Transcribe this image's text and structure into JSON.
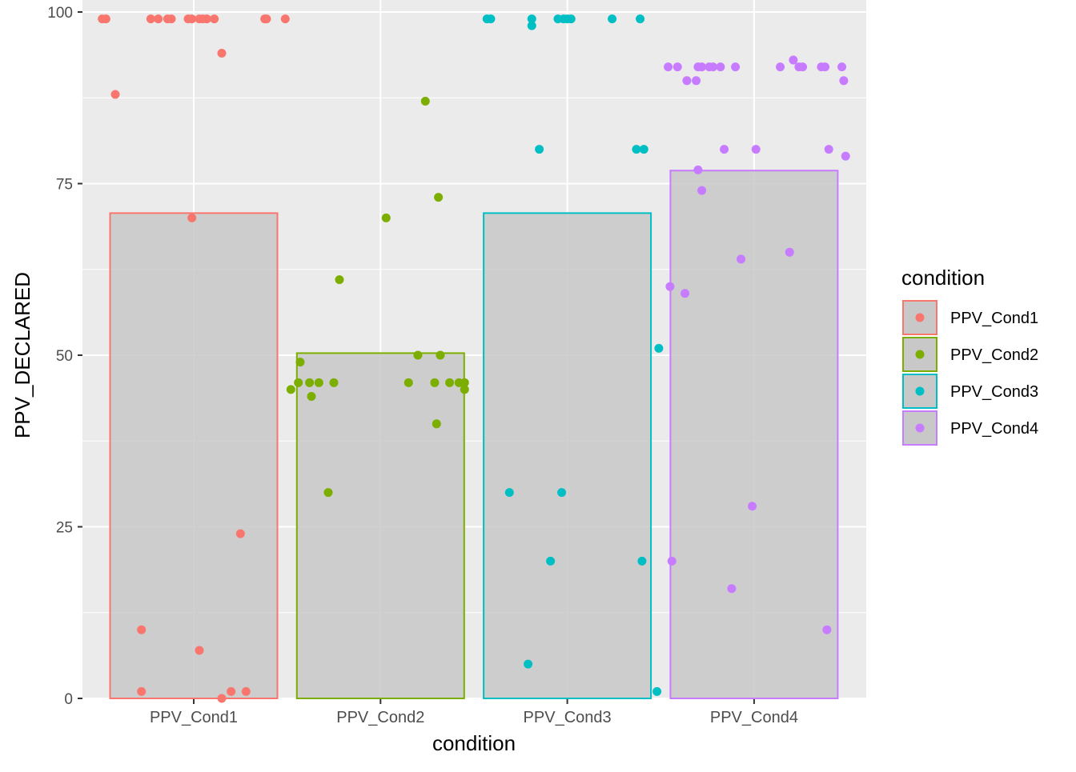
{
  "chart_data": {
    "type": "bar",
    "title": "",
    "xlabel": "condition",
    "ylabel": "PPV_DECLARED",
    "ylim": [
      0,
      100
    ],
    "yticks": [
      0,
      25,
      50,
      75,
      100
    ],
    "grid": true,
    "legend": {
      "title": "condition",
      "placement": "right"
    },
    "categories": [
      "PPV_Cond1",
      "PPV_Cond2",
      "PPV_Cond3",
      "PPV_Cond4"
    ],
    "colors": [
      "#F8766D",
      "#7CAE00",
      "#00BFC4",
      "#C77CFF"
    ],
    "bar_fill": "#c8c8c8",
    "values": [
      70.7,
      50.3,
      70.7,
      76.9
    ],
    "points": [
      {
        "category": "PPV_Cond1",
        "x": [
          0.51,
          0.53,
          0.77,
          0.81,
          0.86,
          0.88,
          0.97,
          0.99,
          1.03,
          1.05,
          1.07,
          1.11,
          1.38,
          1.39,
          1.49,
          1.15,
          0.58,
          0.99,
          1.25,
          0.72,
          1.03,
          0.72,
          1.2,
          1.28,
          1.15
        ],
        "y": [
          99,
          99,
          99,
          99,
          99,
          99,
          99,
          99,
          99,
          99,
          99,
          99,
          99,
          99,
          99,
          94,
          88,
          70,
          24,
          10,
          7,
          1,
          1,
          1,
          0
        ]
      },
      {
        "category": "PPV_Cond2",
        "x": [
          2.24,
          2.31,
          2.03,
          1.78,
          2.2,
          2.32,
          1.57,
          1.56,
          1.62,
          1.67,
          1.75,
          2.15,
          2.29,
          2.37,
          2.42,
          2.45,
          1.52,
          2.45,
          1.63,
          2.3,
          1.72
        ],
        "y": [
          87,
          73,
          70,
          61,
          50,
          50,
          49,
          46,
          46,
          46,
          46,
          46,
          46,
          46,
          46,
          46,
          45,
          45,
          44,
          40,
          30
        ]
      },
      {
        "category": "PPV_Cond3",
        "x": [
          2.57,
          2.59,
          2.81,
          2.95,
          2.98,
          3.0,
          3.02,
          3.24,
          3.39,
          2.81,
          2.85,
          3.37,
          3.41,
          3.49,
          2.69,
          2.97,
          2.91,
          3.4,
          2.79,
          3.48
        ],
        "y": [
          99,
          99,
          99,
          99,
          99,
          99,
          99,
          99,
          99,
          98,
          80,
          80,
          80,
          51,
          30,
          30,
          20,
          20,
          5,
          1
        ]
      },
      {
        "category": "PPV_Cond4",
        "x": [
          3.54,
          3.59,
          3.7,
          3.72,
          3.76,
          3.78,
          3.82,
          3.9,
          4.14,
          4.24,
          4.26,
          4.36,
          4.38,
          4.47,
          4.21,
          3.64,
          3.69,
          4.48,
          3.84,
          4.01,
          4.4,
          4.49,
          3.7,
          3.72,
          4.19,
          3.93,
          3.55,
          3.63,
          3.99,
          3.56,
          3.88,
          4.39
        ],
        "y": [
          92,
          92,
          92,
          92,
          92,
          92,
          92,
          92,
          92,
          92,
          92,
          92,
          92,
          92,
          93,
          90,
          90,
          90,
          80,
          80,
          80,
          79,
          77,
          74,
          65,
          64,
          60,
          59,
          28,
          20,
          16,
          10
        ]
      }
    ]
  }
}
